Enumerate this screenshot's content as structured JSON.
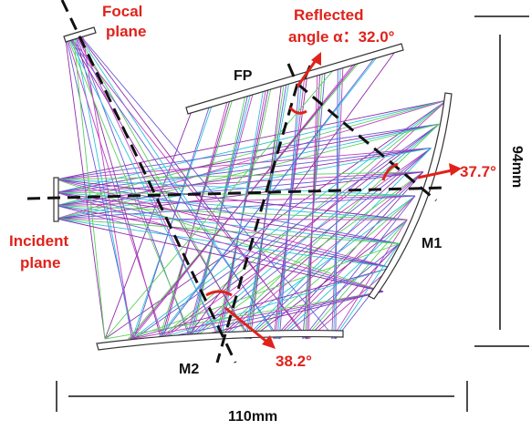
{
  "labels": {
    "focal_plane": [
      "Focal",
      "plane"
    ],
    "reflected_angle": [
      "Reflected",
      "angle α：32.0°"
    ],
    "fp": "FP",
    "height": "94mm",
    "m1_angle": "37.7°",
    "incident_plane": [
      "Incident",
      "plane"
    ],
    "m1": "M1",
    "m2": "M2",
    "m2_angle": "38.2°",
    "width": "110mm"
  }
}
